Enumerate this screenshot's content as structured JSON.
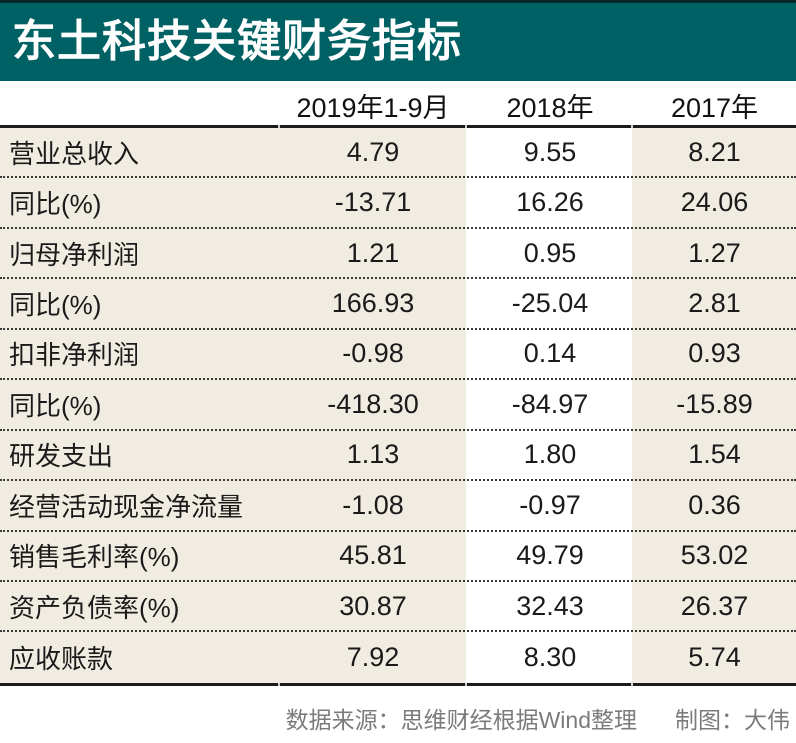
{
  "title": "东土科技关键财务指标",
  "chart_data": {
    "type": "table",
    "title": "东土科技关键财务指标",
    "unit_note": "",
    "columns": [
      "2019年1-9月",
      "2018年",
      "2017年"
    ],
    "rows": [
      {
        "label": "营业总收入",
        "values": [
          "4.79",
          "9.55",
          "8.21"
        ]
      },
      {
        "label": "同比(%)",
        "values": [
          "-13.71",
          "16.26",
          "24.06"
        ]
      },
      {
        "label": "归母净利润",
        "values": [
          "1.21",
          "0.95",
          "1.27"
        ]
      },
      {
        "label": "同比(%)",
        "values": [
          "166.93",
          "-25.04",
          "2.81"
        ]
      },
      {
        "label": "扣非净利润",
        "values": [
          "-0.98",
          "0.14",
          "0.93"
        ]
      },
      {
        "label": "同比(%)",
        "values": [
          "-418.30",
          "-84.97",
          "-15.89"
        ]
      },
      {
        "label": "研发支出",
        "values": [
          "1.13",
          "1.80",
          "1.54"
        ]
      },
      {
        "label": "经营活动现金净流量",
        "values": [
          "-1.08",
          "-0.97",
          "0.36"
        ]
      },
      {
        "label": "销售毛利率(%)",
        "values": [
          "45.81",
          "49.79",
          "53.02"
        ]
      },
      {
        "label": "资产负债率(%)",
        "values": [
          "30.87",
          "32.43",
          "26.37"
        ]
      },
      {
        "label": "应收账款",
        "values": [
          "7.92",
          "8.30",
          "5.74"
        ]
      }
    ],
    "layout": {
      "highlighted_column": "2018年",
      "row_separator": "dotted"
    }
  },
  "footer": {
    "source": "数据来源：思维财经根据Wind整理",
    "credit": "制图：大伟"
  },
  "colors": {
    "title_bg": "#006164",
    "title_text": "#ffffff",
    "top_edge": "#06282a",
    "row_bg": "#f0ece1",
    "highlight_col_bg": "#ffffff",
    "border": "#1b1b1b",
    "dotted_separator": "#3a3a3a",
    "footer_text": "#7b7b7b"
  }
}
